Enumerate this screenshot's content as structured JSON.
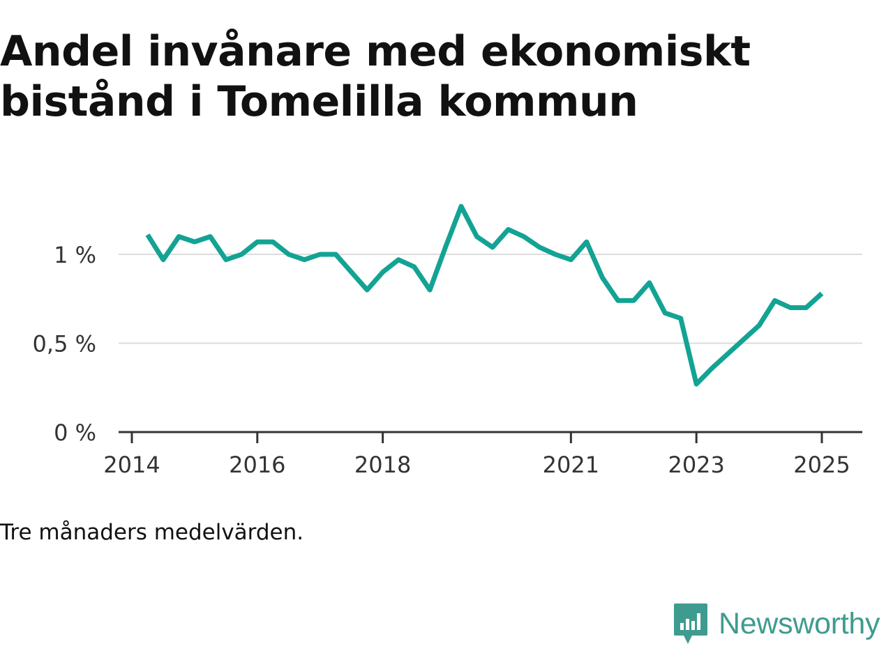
{
  "title_line1": "Andel invånare med ekonomiskt",
  "title_line2": "bistånd i Tomelilla kommun",
  "note": "Tre månaders medelvärden.",
  "brand": {
    "name": "Newsworthy",
    "icon": "newsworthy-logo-icon",
    "color": "#3f9b8f"
  },
  "chart_data": {
    "type": "line",
    "xlabel": "",
    "ylabel": "",
    "x": [
      "2014-04",
      "2014-07",
      "2014-10",
      "2015-01",
      "2015-04",
      "2015-07",
      "2015-10",
      "2016-01",
      "2016-04",
      "2016-07",
      "2016-10",
      "2017-01",
      "2017-04",
      "2017-07",
      "2017-10",
      "2018-01",
      "2018-04",
      "2018-07",
      "2018-10",
      "2019-01",
      "2019-04",
      "2019-07",
      "2019-10",
      "2020-01",
      "2020-04",
      "2020-07",
      "2020-10",
      "2021-01",
      "2021-04",
      "2021-07",
      "2021-10",
      "2022-01",
      "2022-04",
      "2022-07",
      "2022-10",
      "2023-01",
      "2023-04",
      "2023-07",
      "2023-10",
      "2024-01",
      "2024-04",
      "2024-07",
      "2024-10",
      "2025-01"
    ],
    "series": [
      {
        "color": "#13a394",
        "values": [
          1.11,
          0.97,
          1.1,
          1.07,
          1.1,
          0.97,
          1.0,
          1.07,
          1.07,
          1.0,
          0.97,
          1.0,
          1.0,
          0.9,
          0.8,
          0.9,
          0.97,
          0.93,
          0.8,
          1.04,
          1.27,
          1.1,
          1.04,
          1.14,
          1.1,
          1.04,
          1.0,
          0.97,
          1.07,
          0.87,
          0.74,
          0.74,
          0.84,
          0.67,
          0.64,
          0.27,
          0.36,
          0.44,
          0.52,
          0.6,
          0.74,
          0.7,
          0.7,
          0.78
        ]
      }
    ],
    "xticks": [
      {
        "label": "2014",
        "date": "2014-01"
      },
      {
        "label": "2016",
        "date": "2016-01"
      },
      {
        "label": "2018",
        "date": "2018-01"
      },
      {
        "label": "2021",
        "date": "2021-01"
      },
      {
        "label": "2023",
        "date": "2023-01"
      },
      {
        "label": "2025",
        "date": "2025-01"
      }
    ],
    "yticks": [
      {
        "label": "0 %",
        "value": 0
      },
      {
        "label": "0,5 %",
        "value": 0.5
      },
      {
        "label": "1 %",
        "value": 1
      }
    ],
    "xlim": [
      "2014-01",
      "2025-05"
    ],
    "ylim": [
      0,
      1.4
    ],
    "grid": true,
    "legend": "none"
  }
}
